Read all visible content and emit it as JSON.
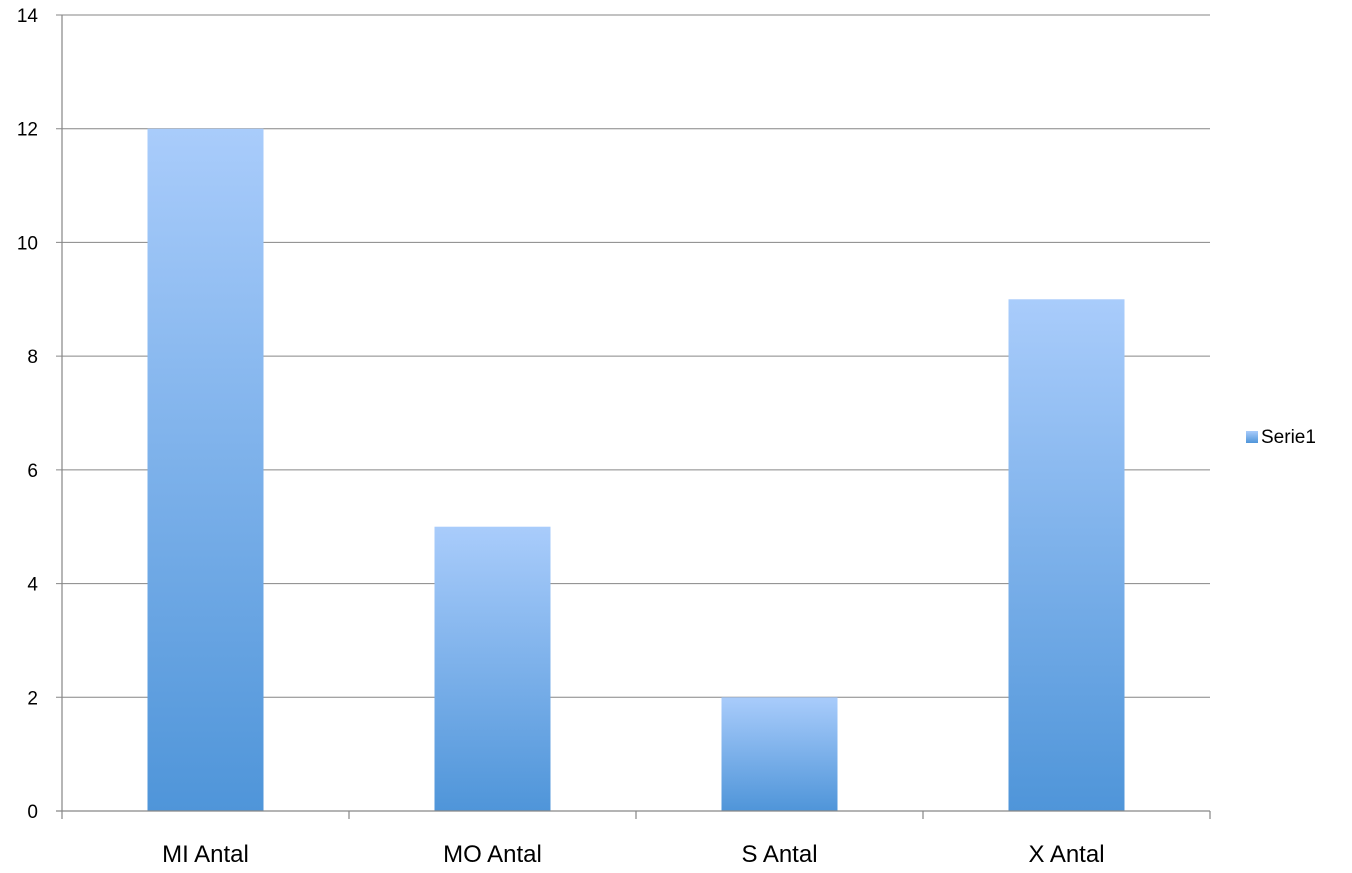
{
  "chart_data": {
    "type": "bar",
    "categories": [
      "MI Antal",
      "MO Antal",
      "S Antal",
      "X Antal"
    ],
    "series": [
      {
        "name": "Serie1",
        "values": [
          12,
          5,
          2,
          9
        ]
      }
    ],
    "title": "",
    "xlabel": "",
    "ylabel": "",
    "ylim": [
      0,
      14
    ],
    "yticks": [
      "0",
      "2",
      "4",
      "6",
      "8",
      "10",
      "12",
      "14"
    ],
    "grid": true,
    "legend": {
      "position": "right",
      "entries": [
        "Serie1"
      ]
    },
    "colors": {
      "bar_top": "#a9ccfb",
      "bar_bottom": "#4f95d9",
      "grid": "#868686",
      "axis": "#868686"
    }
  }
}
